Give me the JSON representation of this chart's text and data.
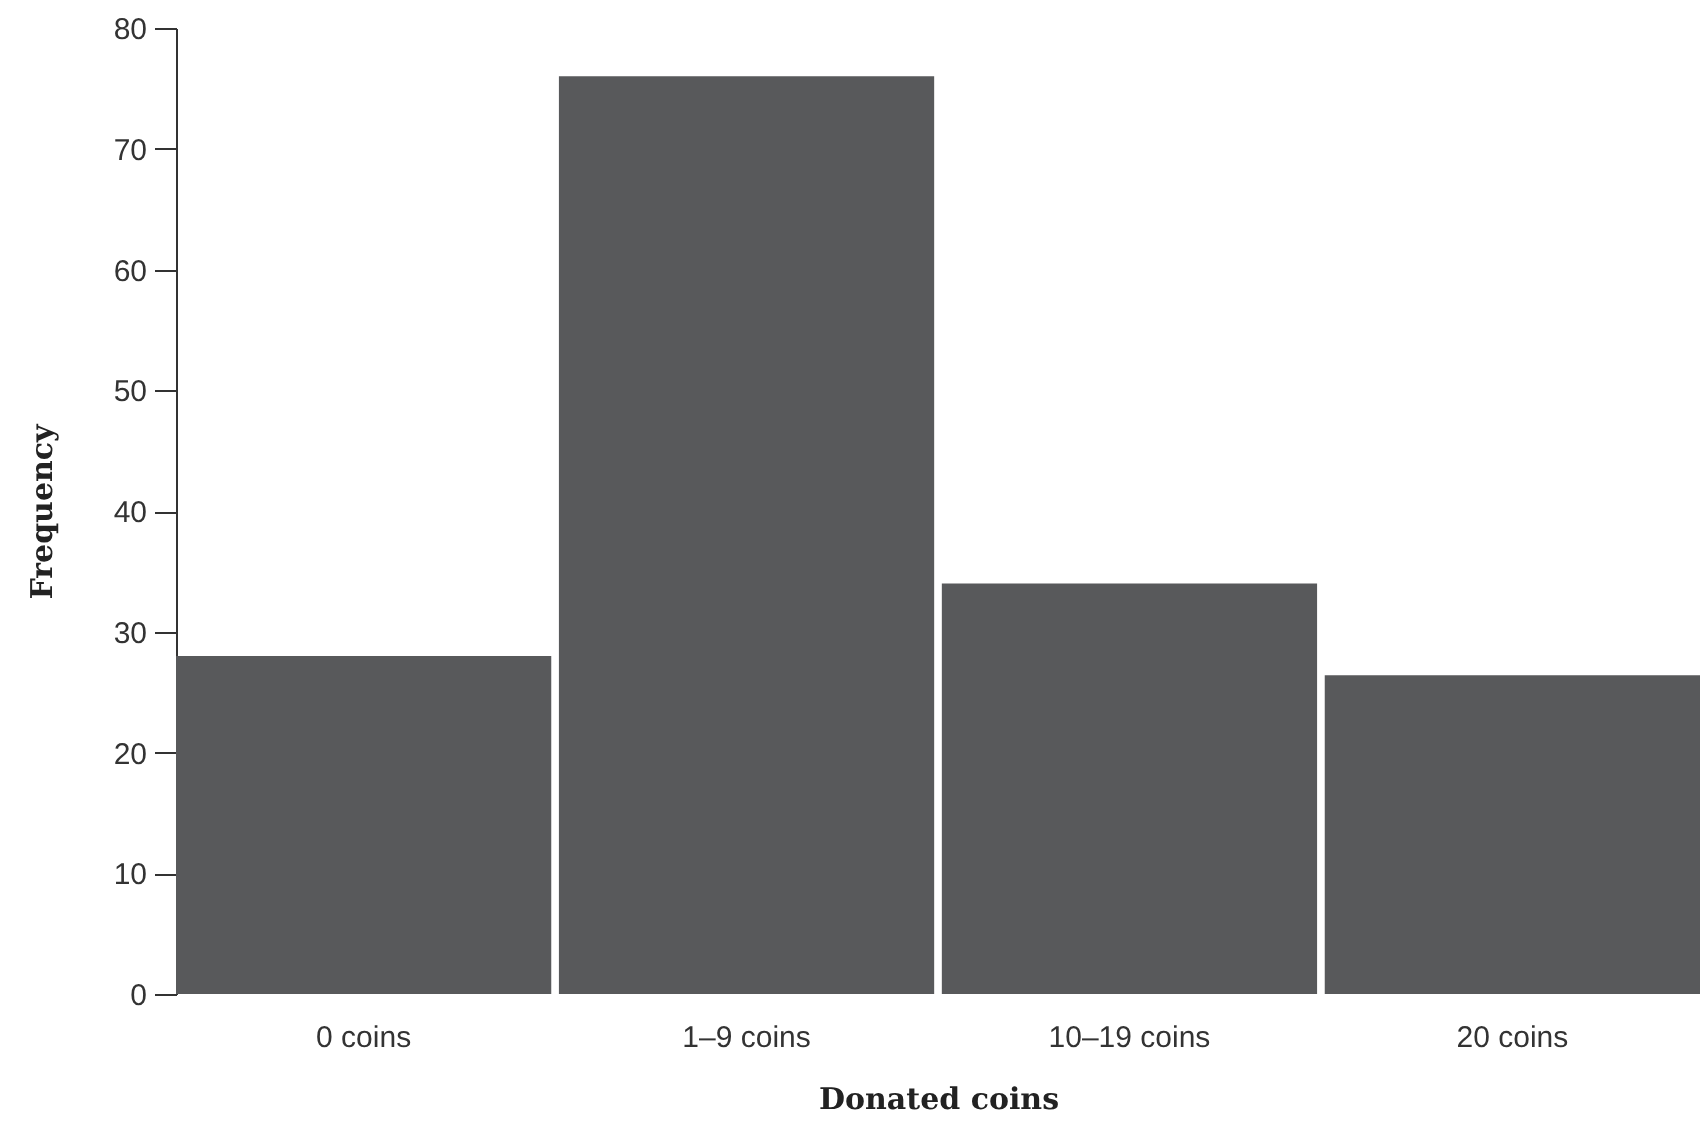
{
  "chart_data": {
    "type": "bar",
    "xlabel": "Donated coins",
    "ylabel": "Frequency",
    "categories": [
      "0 coins",
      "1–9 coins",
      "10–19 coins",
      "20 coins"
    ],
    "values": [
      28,
      76,
      34,
      26.4
    ],
    "color": "#58595b",
    "ylim": [
      0,
      80
    ],
    "yticks": [
      0,
      10,
      20,
      30,
      40,
      50,
      60,
      70,
      80
    ],
    "grid": false
  }
}
